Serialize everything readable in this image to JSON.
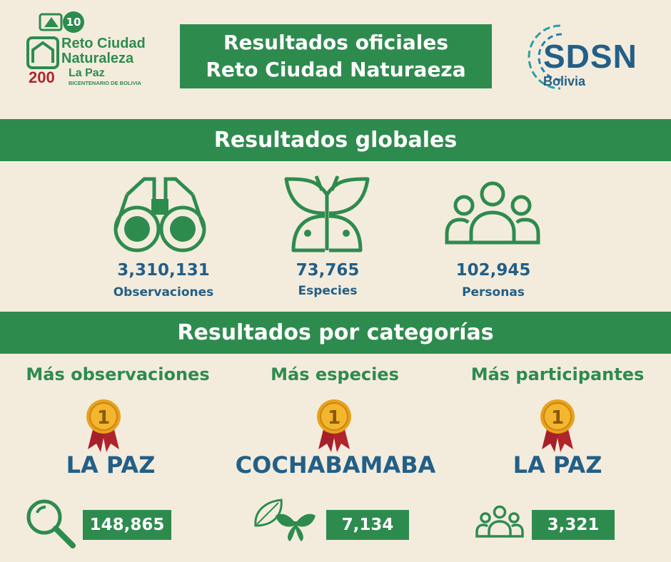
{
  "logo_left": {
    "badge_number": "10",
    "line1": "Reto Ciudad",
    "line2": "Naturaleza",
    "anniversary": "200",
    "city": "La Paz",
    "subtitle": "BICENTENARIO DE BOLIVIA"
  },
  "header": {
    "title_line1": "Resultados oficiales",
    "title_line2": "Reto Ciudad Naturaeza"
  },
  "logo_right": {
    "name": "SDSN",
    "country": "Bolivia"
  },
  "global": {
    "heading": "Resultados globales",
    "stats": [
      {
        "value": "3,310,131",
        "label": "Observaciones",
        "icon": "binoculars-icon"
      },
      {
        "value": "73,765",
        "label": "Especies",
        "icon": "butterfly-icon"
      },
      {
        "value": "102,945",
        "label": "Personas",
        "icon": "people-icon"
      }
    ]
  },
  "categories": {
    "heading": "Resultados por categorías",
    "items": [
      {
        "title": "Más observaciones",
        "rank": "1",
        "winner": "LA PAZ",
        "value": "148,865",
        "icon": "magnifier-icon"
      },
      {
        "title": "Más especies",
        "rank": "1",
        "winner": "COCHABAMABA",
        "value": "7,134",
        "icon": "leaf-butterfly-icon"
      },
      {
        "title": "Más participantes",
        "rank": "1",
        "winner": "LA PAZ",
        "value": "3,321",
        "icon": "people-icon"
      }
    ]
  },
  "colors": {
    "green": "#2e8b4e",
    "blue": "#235f87",
    "background": "#f3ecdd",
    "medal": "#e8a21c",
    "ribbon": "#b0242c"
  }
}
